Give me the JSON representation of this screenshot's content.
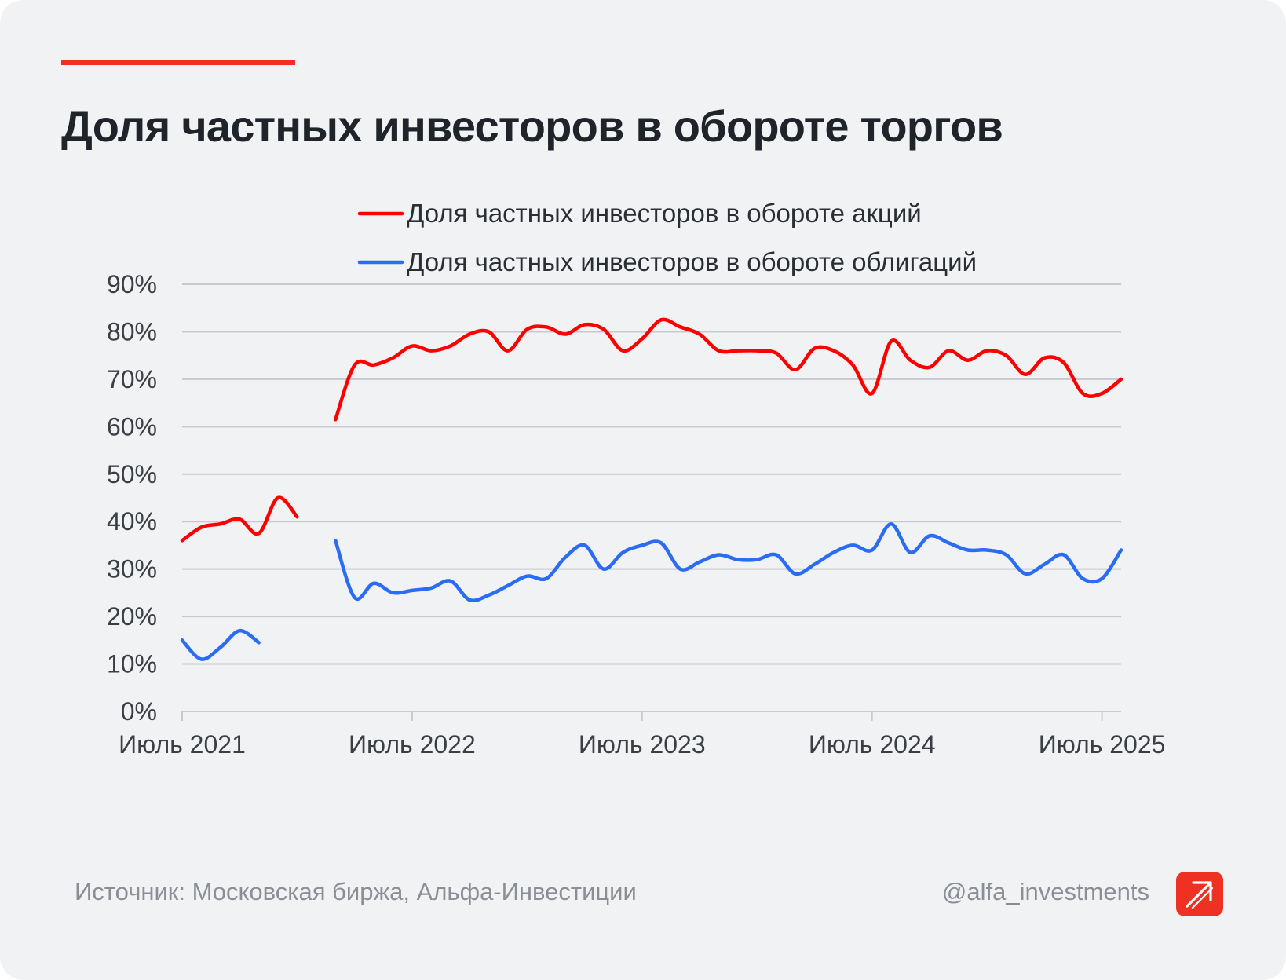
{
  "header": {
    "title": "Доля частных инвесторов в обороте торгов"
  },
  "footer": {
    "source": "Источник: Московская биржа, Альфа-Инвестиции",
    "handle": "@alfa_investments",
    "logo_icon": "alfa-logo-icon"
  },
  "colors": {
    "accent": "#ef3124",
    "background": "#f1f2f4",
    "text": "#1f242b"
  },
  "chart_data": {
    "type": "line",
    "title": "Доля частных инвесторов в обороте торгов",
    "xlabel": "",
    "ylabel": "",
    "x_range": [
      "2021-07",
      "2025-08"
    ],
    "ylim": [
      0,
      90
    ],
    "y_ticks": [
      "0%",
      "10%",
      "20%",
      "30%",
      "40%",
      "50%",
      "60%",
      "70%",
      "80%",
      "90%"
    ],
    "x_ticks": [
      {
        "date": "2021-07",
        "label": "Июль 2021"
      },
      {
        "date": "2022-07",
        "label": "Июль 2022"
      },
      {
        "date": "2023-07",
        "label": "Июль 2023"
      },
      {
        "date": "2024-07",
        "label": "Июль 2024"
      },
      {
        "date": "2025-07",
        "label": "Июль 2025"
      }
    ],
    "grid": "horizontal",
    "legend": "top",
    "series": [
      {
        "name": "Доля частных инвесторов в обороте акций",
        "color": "#ff0000",
        "segments": [
          [
            [
              "2021-07",
              36
            ],
            [
              "2021-08",
              38.8
            ],
            [
              "2021-09",
              39.5
            ],
            [
              "2021-10",
              40.5
            ],
            [
              "2021-11",
              37.5
            ],
            [
              "2021-12",
              45
            ],
            [
              "2022-01",
              41
            ]
          ],
          [
            [
              "2022-03",
              61.5
            ],
            [
              "2022-04",
              73
            ],
            [
              "2022-05",
              73
            ],
            [
              "2022-06",
              74.5
            ],
            [
              "2022-07",
              77
            ],
            [
              "2022-08",
              76
            ],
            [
              "2022-09",
              77
            ],
            [
              "2022-10",
              79.5
            ],
            [
              "2022-11",
              80
            ],
            [
              "2022-12",
              76
            ],
            [
              "2023-01",
              80.5
            ],
            [
              "2023-02",
              81
            ],
            [
              "2023-03",
              79.5
            ],
            [
              "2023-04",
              81.5
            ],
            [
              "2023-05",
              80.5
            ],
            [
              "2023-06",
              76
            ],
            [
              "2023-07",
              78.5
            ],
            [
              "2023-08",
              82.5
            ],
            [
              "2023-09",
              81
            ],
            [
              "2023-10",
              79.5
            ],
            [
              "2023-11",
              76
            ],
            [
              "2023-12",
              76
            ],
            [
              "2024-01",
              76
            ],
            [
              "2024-02",
              75.5
            ],
            [
              "2024-03",
              72
            ],
            [
              "2024-04",
              76.5
            ],
            [
              "2024-05",
              76
            ],
            [
              "2024-06",
              73
            ],
            [
              "2024-07",
              67
            ],
            [
              "2024-08",
              78
            ],
            [
              "2024-09",
              74
            ],
            [
              "2024-10",
              72.5
            ],
            [
              "2024-11",
              76
            ],
            [
              "2024-12",
              74
            ],
            [
              "2025-01",
              76
            ],
            [
              "2025-02",
              75
            ],
            [
              "2025-03",
              71
            ],
            [
              "2025-04",
              74.5
            ],
            [
              "2025-05",
              73.5
            ],
            [
              "2025-06",
              67
            ],
            [
              "2025-07",
              67
            ],
            [
              "2025-08",
              70
            ]
          ]
        ]
      },
      {
        "name": "Доля частных инвесторов в обороте облигаций",
        "color": "#2b6cf4",
        "segments": [
          [
            [
              "2021-07",
              15
            ],
            [
              "2021-08",
              11
            ],
            [
              "2021-09",
              13.5
            ],
            [
              "2021-10",
              17
            ],
            [
              "2021-11",
              14.5
            ]
          ],
          [
            [
              "2022-03",
              36
            ],
            [
              "2022-04",
              24
            ],
            [
              "2022-05",
              27
            ],
            [
              "2022-06",
              25
            ],
            [
              "2022-07",
              25.5
            ],
            [
              "2022-08",
              26
            ],
            [
              "2022-09",
              27.5
            ],
            [
              "2022-10",
              23.5
            ],
            [
              "2022-11",
              24.5
            ],
            [
              "2022-12",
              26.5
            ],
            [
              "2023-01",
              28.5
            ],
            [
              "2023-02",
              28
            ],
            [
              "2023-03",
              32.5
            ],
            [
              "2023-04",
              35
            ],
            [
              "2023-05",
              30
            ],
            [
              "2023-06",
              33.5
            ],
            [
              "2023-07",
              35
            ],
            [
              "2023-08",
              35.5
            ],
            [
              "2023-09",
              30
            ],
            [
              "2023-10",
              31.5
            ],
            [
              "2023-11",
              33
            ],
            [
              "2023-12",
              32
            ],
            [
              "2024-01",
              32
            ],
            [
              "2024-02",
              33
            ],
            [
              "2024-03",
              29
            ],
            [
              "2024-04",
              31
            ],
            [
              "2024-05",
              33.5
            ],
            [
              "2024-06",
              35
            ],
            [
              "2024-07",
              34
            ],
            [
              "2024-08",
              39.5
            ],
            [
              "2024-09",
              33.5
            ],
            [
              "2024-10",
              37
            ],
            [
              "2024-11",
              35.5
            ],
            [
              "2024-12",
              34
            ],
            [
              "2025-01",
              34
            ],
            [
              "2025-02",
              33
            ],
            [
              "2025-03",
              29
            ],
            [
              "2025-04",
              31
            ],
            [
              "2025-05",
              33
            ],
            [
              "2025-06",
              28
            ],
            [
              "2025-07",
              28
            ],
            [
              "2025-08",
              34
            ]
          ]
        ]
      }
    ]
  }
}
